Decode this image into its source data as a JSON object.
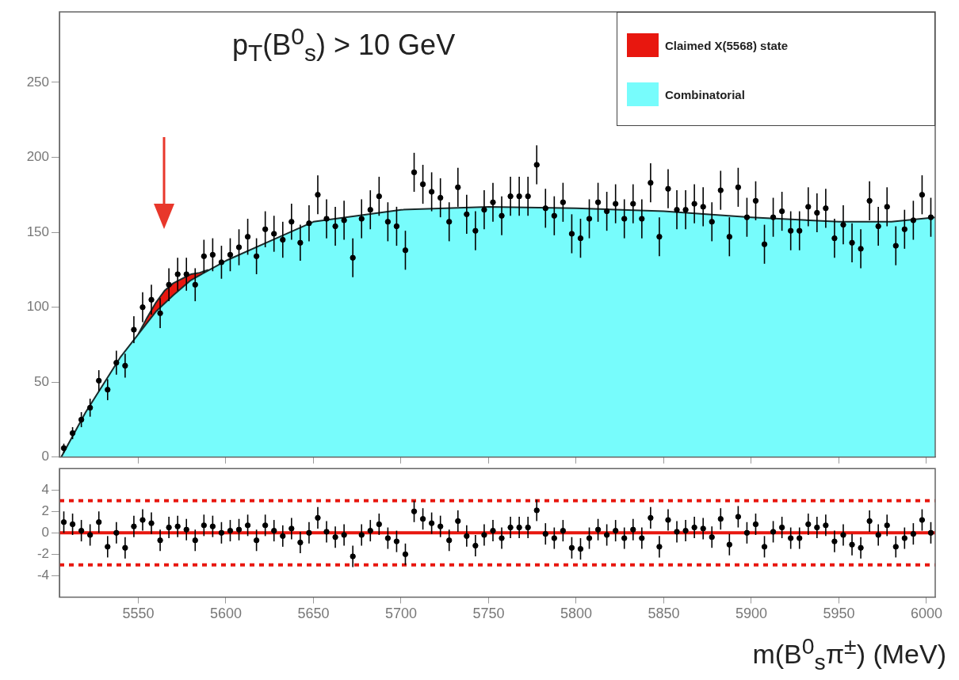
{
  "chart_data": [
    {
      "type": "scatter",
      "legend": "top right",
      "tick_labels": "y",
      "annotations": [
        "p$_{T}$(B$^{0}$$_{s}$) > 10 GeV"
      ],
      "x": [
        5507.5,
        5512.5,
        5517.5,
        5522.5,
        5527.5,
        5532.5,
        5537.5,
        5542.5,
        5547.5,
        5552.5,
        5557.5,
        5562.5,
        5567.5,
        5572.5,
        5577.5,
        5582.5,
        5587.5,
        5592.5,
        5597.5,
        5602.5,
        5607.5,
        5612.5,
        5617.5,
        5622.5,
        5627.5,
        5632.5,
        5637.5,
        5642.5,
        5647.5,
        5652.5,
        5657.5,
        5662.5,
        5667.5,
        5672.5,
        5677.5,
        5682.5,
        5687.5,
        5692.5,
        5697.5,
        5702.5,
        5707.5,
        5712.5,
        5717.5,
        5722.5,
        5727.5,
        5732.5,
        5737.5,
        5742.5,
        5747.5,
        5752.5,
        5757.5,
        5762.5,
        5767.5,
        5772.5,
        5777.5,
        5782.5,
        5787.5,
        5792.5,
        5797.5,
        5802.5,
        5807.5,
        5812.5,
        5817.5,
        5822.5,
        5827.5,
        5832.5,
        5837.5,
        5842.5,
        5847.5,
        5852.5,
        5857.5,
        5862.5,
        5867.5,
        5872.5,
        5877.5,
        5882.5,
        5887.5,
        5892.5,
        5897.5,
        5902.5,
        5907.5,
        5912.5,
        5917.5,
        5922.5,
        5927.5,
        5932.5,
        5937.5,
        5942.5,
        5947.5,
        5952.5,
        5957.5,
        5962.5,
        5967.5,
        5972.5,
        5977.5,
        5982.5,
        5987.5,
        5992.5,
        5997.5,
        6002.5
      ],
      "xlim": [
        5505,
        6005
      ],
      "xticks": [
        5550,
        5600,
        5650,
        5700,
        5750,
        5800,
        5850,
        5900,
        5950,
        6000
      ],
      "ylim": [
        0,
        297
      ],
      "yticks": [
        0,
        50,
        100,
        150,
        200,
        250
      ],
      "series": [
        {
          "type": "area",
          "name": "Claimed X(5568) state",
          "color": "#e8170f",
          "x": [
            5550,
            5555,
            5560,
            5565,
            5570,
            5575,
            5580,
            5585,
            5590
          ],
          "values": [
            82,
            93,
            103,
            111,
            116,
            119,
            122,
            123,
            125
          ]
        },
        {
          "type": "area",
          "name": "Combinatorial",
          "color": "#77fcfc",
          "x": [
            5506,
            5520,
            5540,
            5560,
            5570,
            5580,
            5600,
            5625,
            5650,
            5700,
            5750,
            5800,
            5850,
            5900,
            5950,
            5980,
            6005
          ],
          "values": [
            0,
            30,
            67,
            97,
            108,
            118,
            131,
            144,
            157,
            165,
            167,
            166,
            164,
            160,
            157,
            157,
            160
          ]
        },
        {
          "type": "scatter",
          "marker": "circle",
          "color": "#000000",
          "values": [
            6,
            16,
            25,
            33,
            51,
            45,
            63,
            61,
            85,
            100,
            105,
            96,
            115,
            122,
            122,
            115,
            134,
            135,
            130,
            135,
            140,
            147,
            134,
            152,
            149,
            145,
            157,
            143,
            156,
            175,
            159,
            154,
            158,
            133,
            159,
            165,
            174,
            157,
            154,
            138,
            190,
            182,
            177,
            173,
            157,
            180,
            162,
            151,
            165,
            170,
            161,
            174,
            174,
            174,
            195,
            166,
            161,
            170,
            149,
            146,
            159,
            170,
            164,
            169,
            159,
            169,
            159,
            183,
            147,
            179,
            165,
            165,
            169,
            167,
            157,
            178,
            147,
            180,
            160,
            171,
            142,
            160,
            164,
            151,
            151,
            167,
            163,
            166,
            146,
            155,
            143,
            139,
            171,
            154,
            167,
            141,
            152,
            158,
            175,
            160
          ],
          "errors": [
            3,
            4,
            5,
            6,
            7,
            7,
            8,
            8,
            9,
            10,
            10,
            10,
            11,
            11,
            11,
            11,
            11,
            11,
            11,
            11,
            12,
            12,
            12,
            12,
            12,
            12,
            12,
            12,
            12,
            13,
            13,
            13,
            13,
            13,
            13,
            13,
            13,
            13,
            13,
            13,
            13,
            13,
            13,
            13,
            13,
            13,
            13,
            13,
            13,
            13,
            13,
            13,
            13,
            13,
            13,
            13,
            13,
            13,
            13,
            13,
            13,
            13,
            13,
            13,
            13,
            13,
            13,
            13,
            13,
            13,
            13,
            13,
            13,
            13,
            13,
            13,
            13,
            13,
            13,
            13,
            13,
            13,
            13,
            13,
            13,
            13,
            13,
            13,
            13,
            13,
            13,
            13,
            13,
            13,
            13,
            13,
            13,
            13,
            13,
            13
          ]
        }
      ]
    },
    {
      "type": "scatter",
      "marker": "circle",
      "xlabel": "m(B$^{0}$$_{s}$π$^{±}$) (MeV)",
      "x": [
        5507.5,
        5512.5,
        5517.5,
        5522.5,
        5527.5,
        5532.5,
        5537.5,
        5542.5,
        5547.5,
        5552.5,
        5557.5,
        5562.5,
        5567.5,
        5572.5,
        5577.5,
        5582.5,
        5587.5,
        5592.5,
        5597.5,
        5602.5,
        5607.5,
        5612.5,
        5617.5,
        5622.5,
        5627.5,
        5632.5,
        5637.5,
        5642.5,
        5647.5,
        5652.5,
        5657.5,
        5662.5,
        5667.5,
        5672.5,
        5677.5,
        5682.5,
        5687.5,
        5692.5,
        5697.5,
        5702.5,
        5707.5,
        5712.5,
        5717.5,
        5722.5,
        5727.5,
        5732.5,
        5737.5,
        5742.5,
        5747.5,
        5752.5,
        5757.5,
        5762.5,
        5767.5,
        5772.5,
        5777.5,
        5782.5,
        5787.5,
        5792.5,
        5797.5,
        5802.5,
        5807.5,
        5812.5,
        5817.5,
        5822.5,
        5827.5,
        5832.5,
        5837.5,
        5842.5,
        5847.5,
        5852.5,
        5857.5,
        5862.5,
        5867.5,
        5872.5,
        5877.5,
        5882.5,
        5887.5,
        5892.5,
        5897.5,
        5902.5,
        5907.5,
        5912.5,
        5917.5,
        5922.5,
        5927.5,
        5932.5,
        5937.5,
        5942.5,
        5947.5,
        5952.5,
        5957.5,
        5962.5,
        5967.5,
        5972.5,
        5977.5,
        5982.5,
        5987.5,
        5992.5,
        5997.5,
        6002.5
      ],
      "xlim": [
        5505,
        6005
      ],
      "xticks": [
        5550,
        5600,
        5650,
        5700,
        5750,
        5800,
        5850,
        5900,
        5950,
        6000
      ],
      "ylim": [
        -6,
        6
      ],
      "yticks": [
        -4,
        -2,
        0,
        2,
        4
      ],
      "ref_lines": [
        {
          "axis": "y",
          "value": 0,
          "color": "#e8170f",
          "line_style": "solid"
        },
        {
          "axis": "y",
          "value": 3,
          "color": "#e8170f",
          "line_style": "dotted"
        },
        {
          "axis": "y",
          "value": -3,
          "color": "#e8170f",
          "line_style": "dotted"
        }
      ],
      "series": [
        {
          "color": "#000000",
          "values": [
            1.0,
            0.8,
            0.2,
            -0.2,
            1.0,
            -1.3,
            0,
            -1.4,
            0.6,
            1.2,
            0.9,
            -0.7,
            0.5,
            0.6,
            0.3,
            -0.7,
            0.7,
            0.6,
            0,
            0.2,
            0.3,
            0.7,
            -0.7,
            0.7,
            0.2,
            -0.3,
            0.4,
            -0.9,
            0,
            1.4,
            0.1,
            -0.4,
            -0.2,
            -2.2,
            -0.2,
            0.2,
            0.8,
            -0.5,
            -0.8,
            -2.0,
            2.0,
            1.3,
            0.9,
            0.6,
            -0.7,
            1.1,
            -0.3,
            -1.2,
            -0.2,
            0.2,
            -0.5,
            0.5,
            0.5,
            0.5,
            2.1,
            -0.1,
            -0.5,
            0.2,
            -1.4,
            -1.5,
            -0.5,
            0.3,
            -0.2,
            0.2,
            -0.5,
            0.3,
            -0.5,
            1.4,
            -1.3,
            1.2,
            0.1,
            0.2,
            0.5,
            0.4,
            -0.4,
            1.3,
            -1.1,
            1.5,
            0,
            0.8,
            -1.3,
            0.1,
            0.5,
            -0.5,
            -0.5,
            0.8,
            0.5,
            0.7,
            -0.8,
            -0.2,
            -1.1,
            -1.4,
            1.1,
            -0.2,
            0.7,
            -1.3,
            -0.5,
            -0.1,
            1.2,
            0
          ],
          "errors": [
            1,
            1,
            1,
            1,
            1,
            1,
            1,
            1,
            1,
            1,
            1,
            1,
            1,
            1,
            1,
            1,
            1,
            1,
            1,
            1,
            1,
            1,
            1,
            1,
            1,
            1,
            1,
            1,
            1,
            1,
            1,
            1,
            1,
            1,
            1,
            1,
            1,
            1,
            1,
            1,
            1,
            1,
            1,
            1,
            1,
            1,
            1,
            1,
            1,
            1,
            1,
            1,
            1,
            1,
            1,
            1,
            1,
            1,
            1,
            1,
            1,
            1,
            1,
            1,
            1,
            1,
            1,
            1,
            1,
            1,
            1,
            1,
            1,
            1,
            1,
            1,
            1,
            1,
            1,
            1,
            1,
            1,
            1,
            1,
            1,
            1,
            1,
            1,
            1,
            1,
            1,
            1,
            1,
            1,
            1,
            1,
            1,
            1,
            1,
            1
          ]
        }
      ]
    }
  ]
}
